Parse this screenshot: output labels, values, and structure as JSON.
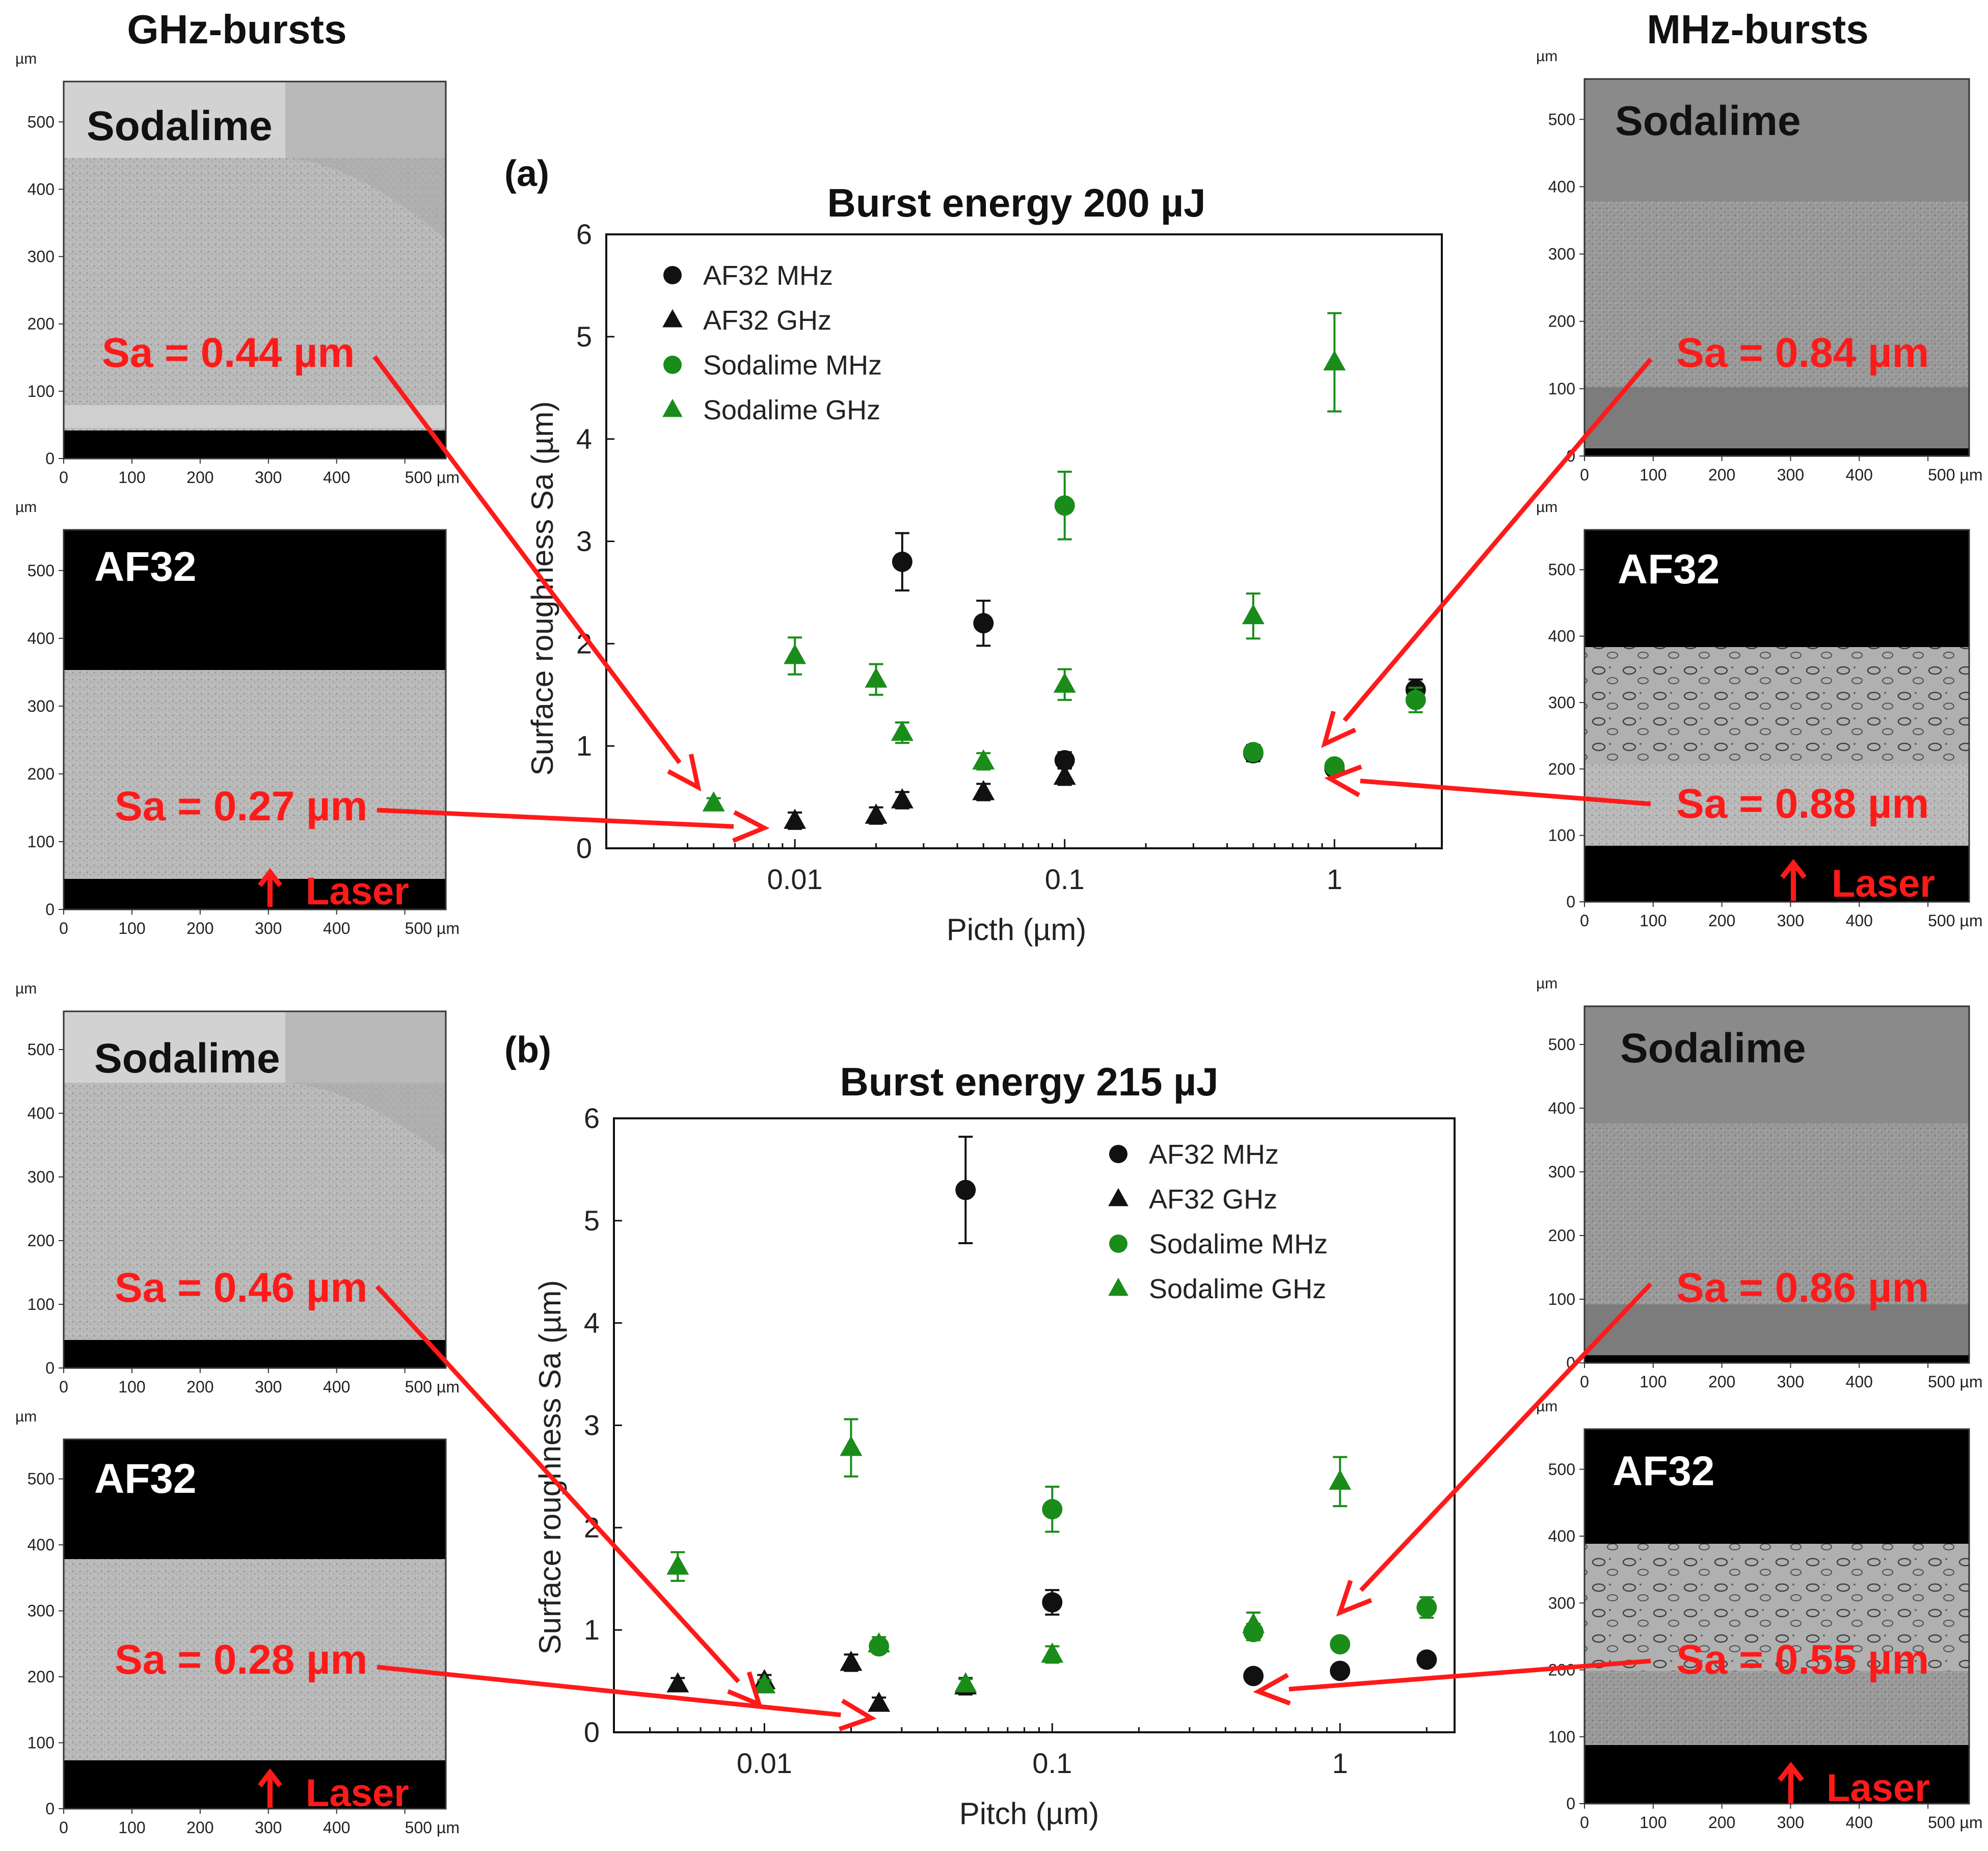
{
  "headers": {
    "left": "GHz-bursts",
    "right": "MHz-bursts"
  },
  "micrograph_axis": {
    "unit": "µm",
    "ticks": [
      "0",
      "100",
      "200",
      "300",
      "400",
      "500"
    ],
    "x_last": "500 µm"
  },
  "micrographs": {
    "tl1": {
      "material": "Sodalime",
      "sa": "Sa = 0.44 µm"
    },
    "tl2": {
      "material": "AF32",
      "sa": "Sa = 0.27 µm",
      "laser": "Laser"
    },
    "tr1": {
      "material": "Sodalime",
      "sa": "Sa = 0.84 µm"
    },
    "tr2": {
      "material": "AF32",
      "sa": "Sa = 0.88 µm",
      "laser": "Laser"
    },
    "bl1": {
      "material": "Sodalime",
      "sa": "Sa = 0.46 µm"
    },
    "bl2": {
      "material": "AF32",
      "sa": "Sa = 0.28 µm",
      "laser": "Laser"
    },
    "br1": {
      "material": "Sodalime",
      "sa": "Sa = 0.86 µm"
    },
    "br2": {
      "material": "AF32",
      "sa": "Sa = 0.55 µm",
      "laser": "Laser"
    }
  },
  "colors": {
    "black": "#111111",
    "green": "#1a8c1a",
    "red": "#ff1a1a"
  },
  "chart_data": [
    {
      "panel_label": "(a)",
      "type": "scatter",
      "title": "Burst energy 200 µJ",
      "xlabel": "Picth (µm)",
      "ylabel": "Surface roughness Sa (µm)",
      "xscale": "log",
      "xlim": [
        0.002,
        2.5
      ],
      "ylim": [
        0,
        6
      ],
      "xticks": [
        {
          "v": 0.01,
          "label": "0.01"
        },
        {
          "v": 0.1,
          "label": "0.1"
        },
        {
          "v": 1,
          "label": "1"
        }
      ],
      "yticks": [
        0,
        1,
        2,
        3,
        4,
        5,
        6
      ],
      "series": [
        {
          "name": "AF32 MHz",
          "marker": "circle",
          "color": "#111111",
          "points": [
            {
              "x": 0.025,
              "y": 2.8,
              "err": 0.28
            },
            {
              "x": 0.05,
              "y": 2.2,
              "err": 0.22
            },
            {
              "x": 0.1,
              "y": 0.86,
              "err": 0.08
            },
            {
              "x": 0.5,
              "y": 0.93,
              "err": 0.08
            },
            {
              "x": 1,
              "y": 0.78,
              "err": 0.06
            },
            {
              "x": 2,
              "y": 1.55,
              "err": 0.1
            }
          ]
        },
        {
          "name": "AF32 GHz",
          "marker": "triangle",
          "color": "#111111",
          "points": [
            {
              "x": 0.01,
              "y": 0.27,
              "err": 0.08
            },
            {
              "x": 0.02,
              "y": 0.32,
              "err": 0.08
            },
            {
              "x": 0.025,
              "y": 0.47,
              "err": 0.08
            },
            {
              "x": 0.05,
              "y": 0.55,
              "err": 0.08
            },
            {
              "x": 0.1,
              "y": 0.7,
              "err": 0.08
            }
          ]
        },
        {
          "name": "Sodalime MHz",
          "marker": "circle",
          "color": "#1a8c1a",
          "points": [
            {
              "x": 0.1,
              "y": 3.35,
              "err": 0.33
            },
            {
              "x": 0.5,
              "y": 0.94,
              "err": 0.06
            },
            {
              "x": 1,
              "y": 0.8,
              "err": 0.06
            },
            {
              "x": 2,
              "y": 1.45,
              "err": 0.12
            }
          ]
        },
        {
          "name": "Sodalime GHz",
          "marker": "triangle",
          "color": "#1a8c1a",
          "points": [
            {
              "x": 0.005,
              "y": 0.44,
              "err": 0.05
            },
            {
              "x": 0.01,
              "y": 1.88,
              "err": 0.18
            },
            {
              "x": 0.02,
              "y": 1.65,
              "err": 0.15
            },
            {
              "x": 0.025,
              "y": 1.13,
              "err": 0.1
            },
            {
              "x": 0.05,
              "y": 0.85,
              "err": 0.08
            },
            {
              "x": 0.1,
              "y": 1.6,
              "err": 0.15
            },
            {
              "x": 0.5,
              "y": 2.27,
              "err": 0.22
            },
            {
              "x": 1,
              "y": 4.75,
              "err": 0.48
            }
          ]
        }
      ],
      "legend": "top-left"
    },
    {
      "panel_label": "(b)",
      "type": "scatter",
      "title": "Burst energy 215 µJ",
      "xlabel": "Pitch (µm)",
      "ylabel": "Surface roughness Sa (µm)",
      "xscale": "log",
      "xlim": [
        0.003,
        2.5
      ],
      "ylim": [
        0,
        6
      ],
      "xticks": [
        {
          "v": 0.01,
          "label": "0.01"
        },
        {
          "v": 0.1,
          "label": "0.1"
        },
        {
          "v": 1,
          "label": "1"
        }
      ],
      "yticks": [
        0,
        1,
        2,
        3,
        4,
        5,
        6
      ],
      "series": [
        {
          "name": "AF32 MHz",
          "marker": "circle",
          "color": "#111111",
          "points": [
            {
              "x": 0.05,
              "y": 5.3,
              "err": 0.52
            },
            {
              "x": 0.1,
              "y": 1.27,
              "err": 0.12
            },
            {
              "x": 0.5,
              "y": 0.55,
              "err": 0.04
            },
            {
              "x": 1,
              "y": 0.6,
              "err": 0.04
            },
            {
              "x": 2,
              "y": 0.71,
              "err": 0.04
            }
          ]
        },
        {
          "name": "AF32 GHz",
          "marker": "triangle",
          "color": "#111111",
          "points": [
            {
              "x": 0.005,
              "y": 0.47,
              "err": 0.06
            },
            {
              "x": 0.01,
              "y": 0.5,
              "err": 0.06
            },
            {
              "x": 0.02,
              "y": 0.68,
              "err": 0.08
            },
            {
              "x": 0.025,
              "y": 0.28,
              "err": 0.06
            },
            {
              "x": 0.05,
              "y": 0.45,
              "err": 0.08
            }
          ]
        },
        {
          "name": "Sodalime MHz",
          "marker": "circle",
          "color": "#1a8c1a",
          "points": [
            {
              "x": 0.025,
              "y": 0.84,
              "err": 0.06
            },
            {
              "x": 0.1,
              "y": 2.18,
              "err": 0.22
            },
            {
              "x": 0.5,
              "y": 0.98,
              "err": 0.08
            },
            {
              "x": 1,
              "y": 0.86,
              "err": 0.06
            },
            {
              "x": 2,
              "y": 1.22,
              "err": 0.1
            }
          ]
        },
        {
          "name": "Sodalime GHz",
          "marker": "triangle",
          "color": "#1a8c1a",
          "points": [
            {
              "x": 0.005,
              "y": 1.62,
              "err": 0.14
            },
            {
              "x": 0.01,
              "y": 0.46,
              "err": 0.05
            },
            {
              "x": 0.02,
              "y": 2.78,
              "err": 0.28
            },
            {
              "x": 0.025,
              "y": 0.86,
              "err": 0.07
            },
            {
              "x": 0.05,
              "y": 0.47,
              "err": 0.05
            },
            {
              "x": 0.1,
              "y": 0.76,
              "err": 0.08
            },
            {
              "x": 0.5,
              "y": 1.05,
              "err": 0.12
            },
            {
              "x": 1,
              "y": 2.45,
              "err": 0.24
            }
          ]
        }
      ],
      "legend": "top-right"
    }
  ]
}
